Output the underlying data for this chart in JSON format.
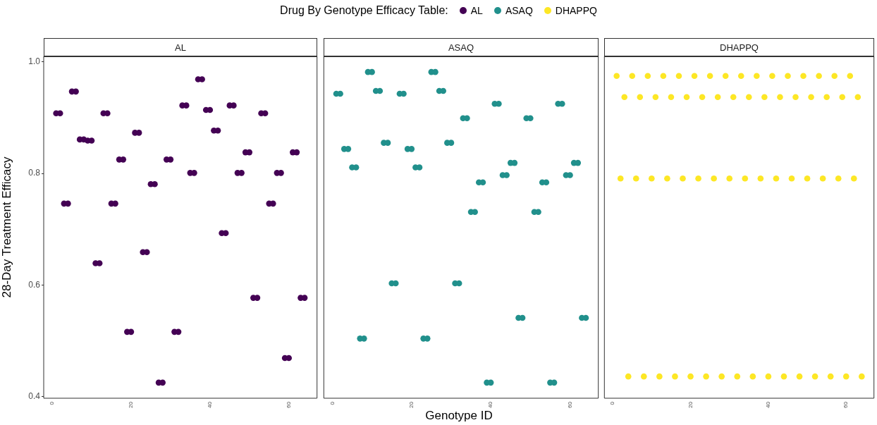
{
  "chart_data": [
    {
      "type": "scatter",
      "title": "AL",
      "ylabel": "28-Day Treatment Efficacy",
      "legend_title": "Drug By Genotype Efficacy Table:",
      "legend": "top",
      "marker": "circle",
      "grid": false,
      "x": [
        1,
        2,
        3,
        4,
        5,
        6,
        7,
        8,
        9,
        10,
        11,
        12,
        13,
        14,
        15,
        16,
        17,
        18,
        19,
        20,
        21,
        22,
        23,
        24,
        25,
        26,
        27,
        28,
        29,
        30,
        31,
        32,
        33,
        34,
        35,
        36,
        37,
        38,
        39,
        40,
        41,
        42,
        43,
        44,
        45,
        46,
        47,
        48,
        49,
        50,
        51,
        52,
        53,
        54,
        55,
        56,
        57,
        58,
        59,
        60,
        61,
        62,
        63,
        64
      ],
      "series": [
        {
          "name": "AL",
          "color": "#440154",
          "values": [
            0.908,
            0.908,
            0.746,
            0.746,
            0.947,
            0.947,
            0.861,
            0.861,
            0.859,
            0.859,
            0.639,
            0.639,
            0.908,
            0.908,
            0.746,
            0.746,
            0.825,
            0.825,
            0.516,
            0.516,
            0.873,
            0.873,
            0.659,
            0.659,
            0.781,
            0.781,
            0.425,
            0.425,
            0.825,
            0.825,
            0.516,
            0.516,
            0.922,
            0.922,
            0.801,
            0.801,
            0.969,
            0.969,
            0.914,
            0.914,
            0.877,
            0.877,
            0.693,
            0.693,
            0.922,
            0.922,
            0.801,
            0.801,
            0.838,
            0.838,
            0.577,
            0.577,
            0.908,
            0.908,
            0.746,
            0.746,
            0.801,
            0.801,
            0.469,
            0.469,
            0.838,
            0.838,
            0.577,
            0.577
          ]
        }
      ],
      "xlim": [
        -2.15,
        67.15
      ],
      "xticks": [
        0,
        20,
        40,
        60
      ],
      "ylim": [
        0.397,
        1.01
      ],
      "yticks": [
        0.4,
        0.6,
        0.8,
        {
          "value": 1,
          "label": "1.0"
        }
      ]
    },
    {
      "type": "scatter",
      "title": "ASAQ",
      "xlabel": "Genotype ID",
      "legend": "top",
      "marker": "circle",
      "grid": false,
      "tick_labels": "x",
      "x": [
        1,
        2,
        3,
        4,
        5,
        6,
        7,
        8,
        9,
        10,
        11,
        12,
        13,
        14,
        15,
        16,
        17,
        18,
        19,
        20,
        21,
        22,
        23,
        24,
        25,
        26,
        27,
        28,
        29,
        30,
        31,
        32,
        33,
        34,
        35,
        36,
        37,
        38,
        39,
        40,
        41,
        42,
        43,
        44,
        45,
        46,
        47,
        48,
        49,
        50,
        51,
        52,
        53,
        54,
        55,
        56,
        57,
        58,
        59,
        60,
        61,
        62,
        63,
        64
      ],
      "series": [
        {
          "name": "ASAQ",
          "color": "#21908c",
          "values": [
            0.943,
            0.943,
            0.844,
            0.844,
            0.811,
            0.811,
            0.504,
            0.504,
            0.982,
            0.982,
            0.948,
            0.948,
            0.855,
            0.855,
            0.603,
            0.603,
            0.943,
            0.943,
            0.844,
            0.844,
            0.811,
            0.811,
            0.504,
            0.504,
            0.982,
            0.982,
            0.948,
            0.948,
            0.855,
            0.855,
            0.603,
            0.603,
            0.899,
            0.899,
            0.731,
            0.731,
            0.784,
            0.784,
            0.425,
            0.425,
            0.925,
            0.925,
            0.797,
            0.797,
            0.819,
            0.819,
            0.541,
            0.541,
            0.899,
            0.899,
            0.731,
            0.731,
            0.784,
            0.784,
            0.425,
            0.425,
            0.925,
            0.925,
            0.797,
            0.797,
            0.819,
            0.819,
            0.541,
            0.541
          ]
        }
      ],
      "xlim": [
        -2.15,
        67.15
      ],
      "xticks": [
        0,
        20,
        40,
        60
      ],
      "ylim": [
        0.397,
        1.01
      ]
    },
    {
      "type": "scatter",
      "title": "DHAPPQ",
      "legend": "top",
      "marker": "circle",
      "grid": false,
      "tick_labels": "x",
      "x": [
        1,
        2,
        3,
        4,
        5,
        6,
        7,
        8,
        9,
        10,
        11,
        12,
        13,
        14,
        15,
        16,
        17,
        18,
        19,
        20,
        21,
        22,
        23,
        24,
        25,
        26,
        27,
        28,
        29,
        30,
        31,
        32,
        33,
        34,
        35,
        36,
        37,
        38,
        39,
        40,
        41,
        42,
        43,
        44,
        45,
        46,
        47,
        48,
        49,
        50,
        51,
        52,
        53,
        54,
        55,
        56,
        57,
        58,
        59,
        60,
        61,
        62,
        63,
        64
      ],
      "series": [
        {
          "name": "DHAPPQ",
          "color": "#fde725",
          "values": [
            0.975,
            0.791,
            0.937,
            0.436,
            0.975,
            0.791,
            0.937,
            0.436,
            0.975,
            0.791,
            0.937,
            0.436,
            0.975,
            0.791,
            0.937,
            0.436,
            0.975,
            0.791,
            0.937,
            0.436,
            0.975,
            0.791,
            0.937,
            0.436,
            0.975,
            0.791,
            0.937,
            0.436,
            0.975,
            0.791,
            0.937,
            0.436,
            0.975,
            0.791,
            0.937,
            0.436,
            0.975,
            0.791,
            0.937,
            0.436,
            0.975,
            0.791,
            0.937,
            0.436,
            0.975,
            0.791,
            0.937,
            0.436,
            0.975,
            0.791,
            0.937,
            0.436,
            0.975,
            0.791,
            0.937,
            0.436,
            0.975,
            0.791,
            0.937,
            0.436,
            0.975,
            0.791,
            0.937,
            0.436
          ]
        }
      ],
      "xlim": [
        -2.15,
        67.15
      ],
      "xticks": [
        0,
        20,
        40,
        60
      ],
      "ylim": [
        0.397,
        1.01
      ]
    }
  ]
}
